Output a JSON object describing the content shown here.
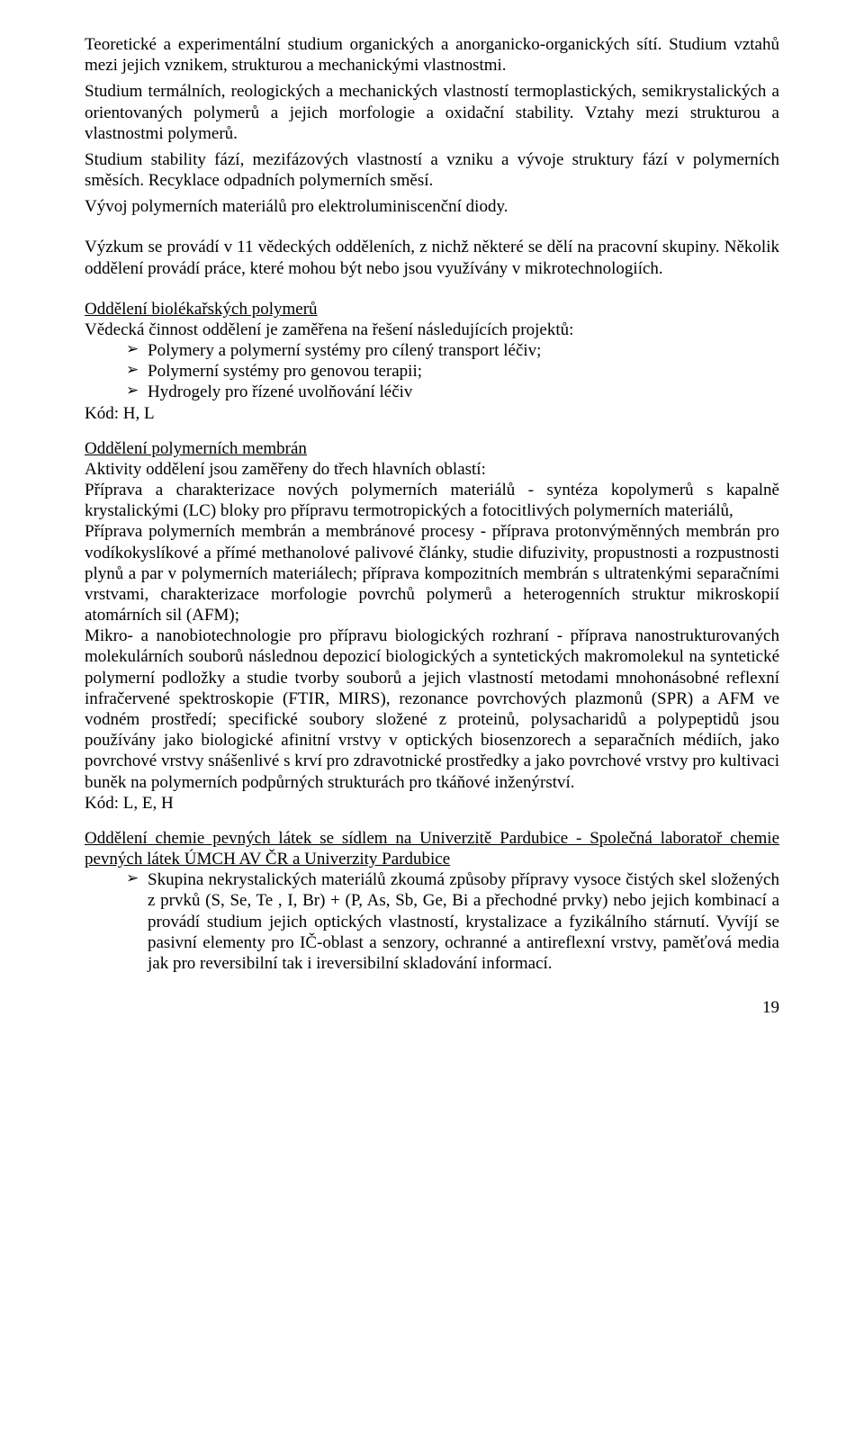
{
  "intro": {
    "p1": "Teoretické a experimentální studium organických a anorganicko-organických sítí. Studium vztahů mezi jejich vznikem, strukturou a mechanickými vlastnostmi.",
    "p2": "Studium termálních, reologických a mechanických vlastností termoplastických, semikrystalických a orientovaných polymerů a jejich morfologie a oxidační stability. Vztahy mezi strukturou a vlastnostmi polymerů.",
    "p3": "Studium stability fází, mezifázových vlastností a vzniku a vývoje struktury fází v polymerních směsích. Recyklace odpadních polymerních směsí.",
    "p4": "Vývoj polymerních materiálů pro elektroluminiscenční diody.",
    "research": "Výzkum se provádí v 11 vědeckých odděleních, z nichž některé se dělí na pracovní skupiny. Několik oddělení provádí práce, které mohou být nebo jsou využívány v mikrotechnologiích."
  },
  "dept1": {
    "title": "Oddělení biolékařských polymerů",
    "lead": "Vědecká činnost oddělení je zaměřena na řešení následujících projektů:",
    "items": [
      "Polymery a polymerní systémy pro cílený transport léčiv;",
      " Polymerní systémy pro genovou terapii;",
      "Hydrogely pro řízené uvolňování léčiv"
    ],
    "code": "Kód: H, L"
  },
  "dept2": {
    "title": "Oddělení polymerních membrán",
    "lead": "Aktivity oddělení jsou zaměřeny do třech hlavních oblastí:",
    "p1": "Příprava a charakterizace nových polymerních materiálů - syntéza kopolymerů s kapalně krystalickými (LC) bloky pro přípravu termotropických a fotocitlivých polymerních materiálů,",
    "p2": "Příprava polymerních membrán a membránové procesy - příprava protonvýměnných membrán pro vodíkokyslíkové a přímé methanolové palivové články, studie difuzivity, propustnosti a rozpustnosti plynů a par v polymerních materiálech; příprava kompozitních membrán s ultratenkými separačními vrstvami, charakterizace morfologie povrchů polymerů a heterogenních struktur mikroskopií atomárních sil (AFM);",
    "p3": "Mikro- a nanobiotechnologie pro přípravu biologických rozhraní - příprava nanostrukturovaných molekulárních souborů následnou depozicí biologických a syntetických makromolekul na syntetické polymerní podložky a studie tvorby souborů a jejich vlastností metodami mnohonásobné reflexní infračervené spektroskopie (FTIR, MIRS), rezonance povrchových plazmonů (SPR) a AFM ve vodném prostředí; specifické soubory složené z proteinů, polysacharidů a polypeptidů jsou používány jako biologické afinitní vrstvy v optických biosenzorech a separačních médiích, jako povrchové vrstvy snášenlivé s krví pro zdravotnické prostředky a jako povrchové vrstvy pro kultivaci buněk na polymerních podpůrných strukturách pro tkáňové inženýrství.",
    "code": "Kód: L, E, H"
  },
  "dept3": {
    "title": "Oddělení chemie pevných látek se sídlem na Univerzitě Pardubice - Společná laboratoř chemie pevných látek ÚMCH AV ČR a Univerzity Pardubice",
    "item": "Skupina nekrystalických materiálů  zkoumá způsoby přípravy vysoce čistých skel složených z prvků (S, Se, Te , I, Br) + (P, As, Sb, Ge, Bi a přechodné prvky) nebo jejich kombinací a provádí studium jejich optických vlastností, krystalizace a fyzikálního stárnutí. Vyvíjí se pasivní elementy pro IČ-oblast a senzory, ochranné a antireflexní vrstvy, paměťová media jak pro reversibilní tak i ireversibilní skladování informací."
  },
  "page_number": "19"
}
